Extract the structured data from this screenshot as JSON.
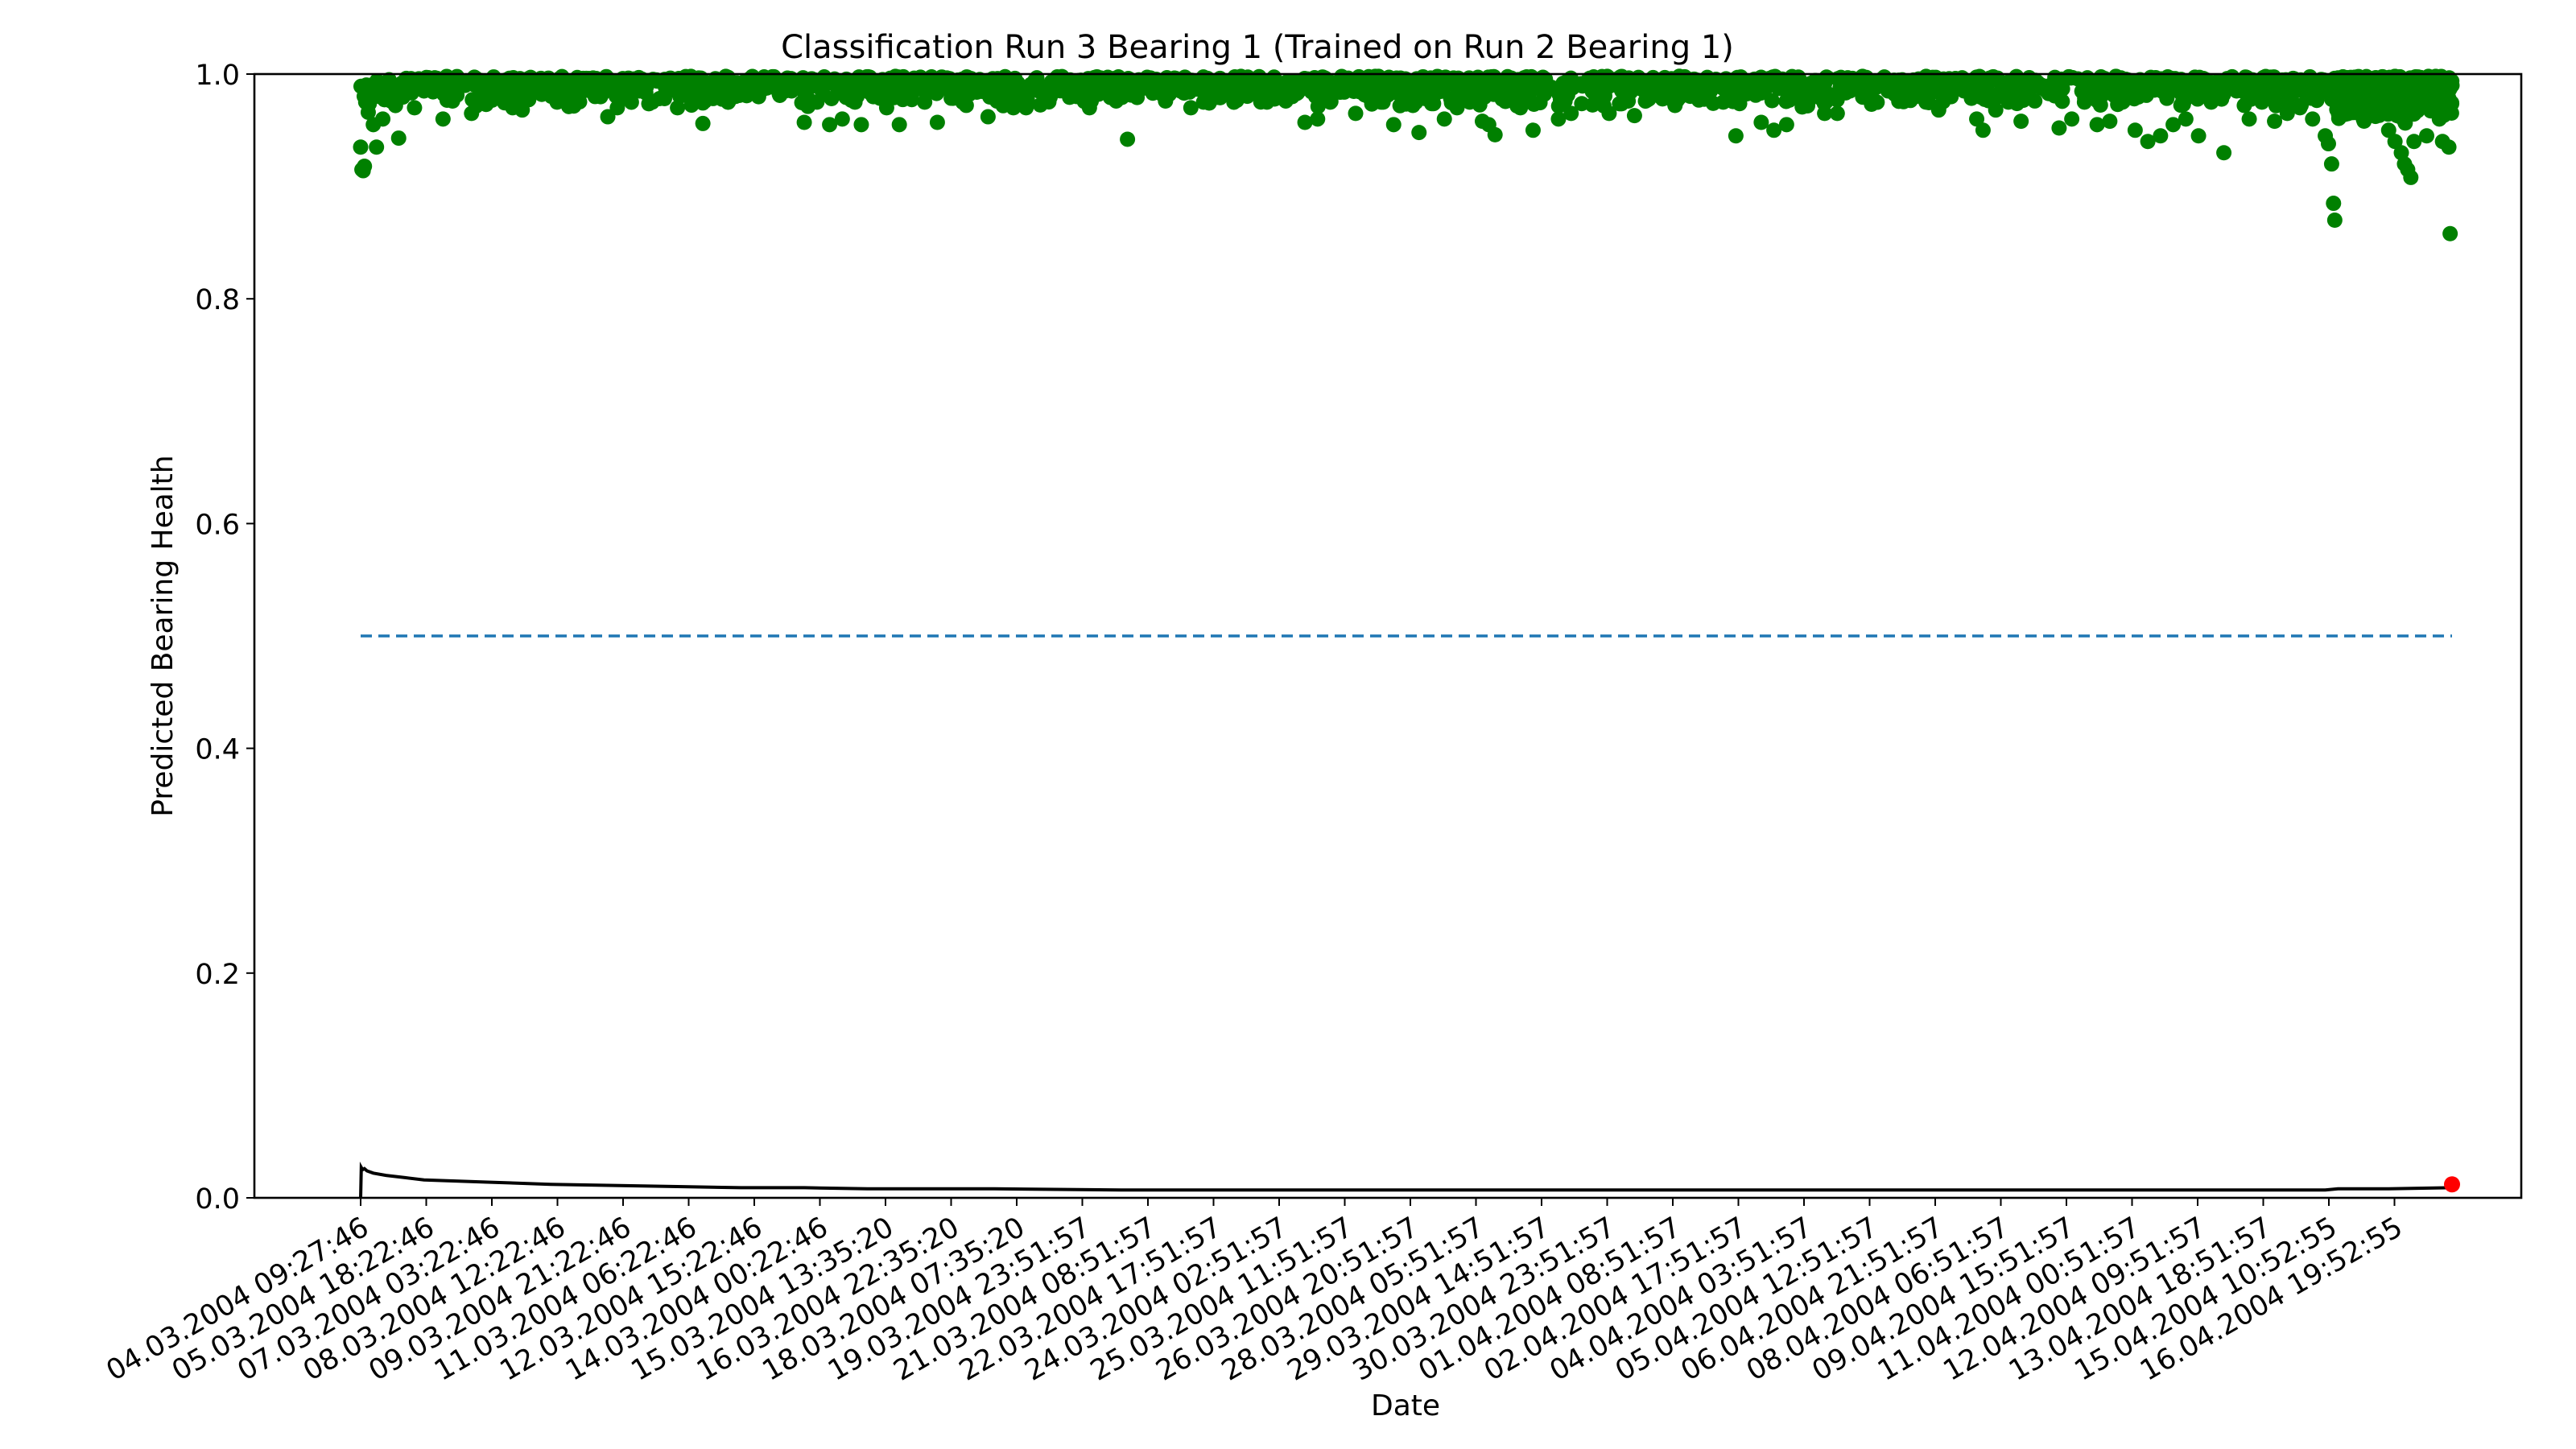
{
  "chart_data": {
    "type": "scatter",
    "title": "Classification Run 3 Bearing 1 (Trained on Run 2 Bearing 1)",
    "xlabel": "Date",
    "ylabel": "Predicted Bearing Health",
    "ylim": [
      0.0,
      1.0
    ],
    "yticks": [
      "0.0",
      "0.2",
      "0.4",
      "0.6",
      "0.8",
      "1.0"
    ],
    "x_tick_labels": [
      "04.03.2004 09:27:46",
      "05.03.2004 18:22:46",
      "07.03.2004 03:22:46",
      "08.03.2004 12:22:46",
      "09.03.2004 21:22:46",
      "11.03.2004 06:22:46",
      "12.03.2004 15:22:46",
      "14.03.2004 00:22:46",
      "15.03.2004 13:35:20",
      "16.03.2004 22:35:20",
      "18.03.2004 07:35:20",
      "19.03.2004 23:51:57",
      "21.03.2004 08:51:57",
      "22.03.2004 17:51:57",
      "24.03.2004 02:51:57",
      "25.03.2004 11:51:57",
      "26.03.2004 20:51:57",
      "28.03.2004 05:51:57",
      "29.03.2004 14:51:57",
      "30.03.2004 23:51:57",
      "01.04.2004 08:51:57",
      "02.04.2004 17:51:57",
      "04.04.2004 03:51:57",
      "05.04.2004 12:51:57",
      "06.04.2004 21:51:57",
      "08.04.2004 06:51:57",
      "09.04.2004 15:51:57",
      "11.04.2004 00:51:57",
      "12.04.2004 09:51:57",
      "13.04.2004 18:51:57",
      "15.04.2004 10:52:55",
      "16.04.2004 19:52:55"
    ],
    "threshold": {
      "value": 0.5,
      "style": "dashed",
      "color": "#1f77b4"
    },
    "series": [
      {
        "kind": "scatter",
        "color": "#008000",
        "points": [
          [
            0.0,
            0.935
          ],
          [
            0.02,
            0.915
          ],
          [
            0.04,
            0.914
          ],
          [
            0.06,
            0.918
          ],
          [
            0.08,
            0.975
          ],
          [
            0.1,
            0.985
          ],
          [
            0.12,
            0.966
          ],
          [
            0.15,
            0.99
          ],
          [
            0.2,
            0.955
          ],
          [
            0.25,
            0.935
          ],
          [
            0.3,
            0.98
          ],
          [
            0.35,
            0.96
          ],
          [
            0.45,
            0.99
          ],
          [
            0.55,
            0.972
          ],
          [
            0.6,
            0.943
          ],
          [
            0.7,
            0.982
          ],
          [
            0.85,
            0.97
          ],
          [
            1.0,
            0.985
          ],
          [
            1.15,
            0.992
          ],
          [
            1.3,
            0.96
          ],
          [
            1.45,
            0.976
          ],
          [
            1.6,
            0.99
          ],
          [
            1.75,
            0.965
          ],
          [
            1.9,
            0.982
          ],
          [
            2.05,
            0.978
          ],
          [
            2.2,
            0.993
          ],
          [
            2.4,
            0.97
          ],
          [
            2.55,
            0.968
          ],
          [
            2.7,
            0.99
          ],
          [
            2.9,
            0.985
          ],
          [
            3.1,
            0.975
          ],
          [
            3.3,
            0.992
          ],
          [
            3.5,
            0.988
          ],
          [
            3.7,
            0.98
          ],
          [
            3.9,
            0.962
          ],
          [
            4.05,
            0.97
          ],
          [
            4.2,
            0.99
          ],
          [
            4.4,
            0.985
          ],
          [
            4.6,
            0.975
          ],
          [
            4.8,
            0.992
          ],
          [
            5.0,
            0.97
          ],
          [
            5.2,
            0.993
          ],
          [
            5.4,
            0.956
          ],
          [
            5.6,
            0.988
          ],
          [
            5.8,
            0.975
          ],
          [
            6.0,
            0.99
          ],
          [
            6.2,
            0.985
          ],
          [
            6.4,
            0.993
          ],
          [
            6.6,
            0.99
          ],
          [
            6.8,
            0.985
          ],
          [
            7.0,
            0.957
          ],
          [
            7.2,
            0.975
          ],
          [
            7.4,
            0.955
          ],
          [
            7.6,
            0.96
          ],
          [
            7.8,
            0.975
          ],
          [
            7.9,
            0.955
          ],
          [
            8.1,
            0.985
          ],
          [
            8.3,
            0.97
          ],
          [
            8.5,
            0.955
          ],
          [
            8.7,
            0.99
          ],
          [
            8.9,
            0.975
          ],
          [
            9.1,
            0.957
          ],
          [
            9.3,
            0.985
          ],
          [
            9.5,
            0.975
          ],
          [
            9.7,
            0.99
          ],
          [
            9.9,
            0.962
          ],
          [
            10.1,
            0.99
          ],
          [
            10.3,
            0.97
          ],
          [
            10.5,
            0.97
          ],
          [
            10.7,
            0.985
          ],
          [
            10.9,
            0.993
          ],
          [
            11.1,
            0.99
          ],
          [
            11.3,
            0.98
          ],
          [
            11.5,
            0.97
          ],
          [
            11.7,
            0.992
          ],
          [
            11.9,
            0.985
          ],
          [
            12.1,
            0.942
          ],
          [
            12.3,
            0.99
          ],
          [
            12.5,
            0.983
          ],
          [
            12.7,
            0.976
          ],
          [
            12.9,
            0.99
          ],
          [
            13.1,
            0.97
          ],
          [
            13.3,
            0.975
          ],
          [
            13.5,
            0.99
          ],
          [
            13.7,
            0.985
          ],
          [
            13.9,
            0.993
          ],
          [
            14.1,
            0.985
          ],
          [
            14.3,
            0.975
          ],
          [
            14.5,
            0.99
          ],
          [
            14.7,
            0.98
          ],
          [
            14.9,
            0.957
          ],
          [
            15.1,
            0.96
          ],
          [
            15.3,
            0.975
          ],
          [
            15.5,
            0.99
          ],
          [
            15.7,
            0.965
          ],
          [
            15.9,
            0.98
          ],
          [
            16.1,
            0.975
          ],
          [
            16.3,
            0.955
          ],
          [
            16.5,
            0.985
          ],
          [
            16.7,
            0.948
          ],
          [
            16.9,
            0.99
          ],
          [
            17.1,
            0.96
          ],
          [
            17.3,
            0.97
          ],
          [
            17.5,
            0.975
          ],
          [
            17.7,
            0.958
          ],
          [
            17.8,
            0.955
          ],
          [
            17.9,
            0.946
          ],
          [
            18.1,
            0.985
          ],
          [
            18.3,
            0.97
          ],
          [
            18.5,
            0.95
          ],
          [
            18.7,
            0.985
          ],
          [
            18.9,
            0.96
          ],
          [
            19.1,
            0.965
          ],
          [
            19.3,
            0.99
          ],
          [
            19.5,
            0.99
          ],
          [
            19.7,
            0.965
          ],
          [
            19.9,
            0.985
          ],
          [
            20.1,
            0.963
          ],
          [
            20.3,
            0.985
          ],
          [
            20.5,
            0.993
          ],
          [
            20.7,
            0.99
          ],
          [
            20.9,
            0.99
          ],
          [
            21.1,
            0.99
          ],
          [
            21.3,
            0.985
          ],
          [
            21.5,
            0.975
          ],
          [
            21.7,
            0.945
          ],
          [
            21.9,
            0.985
          ],
          [
            22.1,
            0.957
          ],
          [
            22.3,
            0.95
          ],
          [
            22.5,
            0.955
          ],
          [
            22.7,
            0.98
          ],
          [
            22.9,
            0.99
          ],
          [
            23.1,
            0.965
          ],
          [
            23.3,
            0.965
          ],
          [
            23.5,
            0.985
          ],
          [
            23.7,
            0.99
          ],
          [
            23.9,
            0.993
          ],
          [
            24.1,
            0.985
          ],
          [
            24.3,
            0.99
          ],
          [
            24.5,
            0.985
          ],
          [
            24.7,
            0.975
          ],
          [
            24.9,
            0.968
          ],
          [
            25.1,
            0.99
          ],
          [
            25.3,
            0.985
          ],
          [
            25.5,
            0.96
          ],
          [
            25.6,
            0.95
          ],
          [
            25.8,
            0.968
          ],
          [
            26.0,
            0.975
          ],
          [
            26.2,
            0.958
          ],
          [
            26.4,
            0.99
          ],
          [
            26.6,
            0.985
          ],
          [
            26.8,
            0.952
          ],
          [
            27.0,
            0.96
          ],
          [
            27.2,
            0.975
          ],
          [
            27.4,
            0.955
          ],
          [
            27.6,
            0.958
          ],
          [
            27.8,
            0.975
          ],
          [
            28.0,
            0.95
          ],
          [
            28.2,
            0.94
          ],
          [
            28.4,
            0.945
          ],
          [
            28.6,
            0.955
          ],
          [
            28.8,
            0.96
          ],
          [
            29.0,
            0.945
          ],
          [
            29.2,
            0.975
          ],
          [
            29.4,
            0.93
          ],
          [
            29.6,
            0.985
          ],
          [
            29.8,
            0.96
          ],
          [
            30.0,
            0.975
          ],
          [
            30.2,
            0.958
          ],
          [
            30.4,
            0.965
          ],
          [
            30.6,
            0.97
          ],
          [
            30.8,
            0.96
          ],
          [
            31.0,
            0.945
          ],
          [
            31.05,
            0.938
          ],
          [
            31.1,
            0.92
          ],
          [
            31.13,
            0.885
          ],
          [
            31.15,
            0.87
          ],
          [
            31.2,
            0.985
          ],
          [
            31.3,
            0.97
          ],
          [
            31.4,
            0.99
          ],
          [
            31.5,
            0.978
          ],
          [
            31.6,
            0.96
          ],
          [
            31.7,
            0.975
          ],
          [
            31.8,
            0.99
          ],
          [
            31.9,
            0.965
          ],
          [
            32.0,
            0.95
          ],
          [
            32.1,
            0.94
          ],
          [
            32.2,
            0.93
          ],
          [
            32.25,
            0.92
          ],
          [
            32.3,
            0.915
          ],
          [
            32.35,
            0.908
          ],
          [
            32.4,
            0.94
          ],
          [
            32.5,
            0.97
          ],
          [
            32.6,
            0.945
          ],
          [
            32.7,
            0.99
          ],
          [
            32.8,
            0.96
          ],
          [
            32.85,
            0.94
          ],
          [
            32.9,
            0.975
          ],
          [
            32.95,
            0.935
          ],
          [
            32.97,
            0.858
          ],
          [
            33.0,
            0.99
          ]
        ]
      },
      {
        "kind": "line",
        "color": "#000000",
        "points": [
          [
            0.0,
            0.0
          ],
          [
            0.01,
            0.027
          ],
          [
            0.03,
            0.025
          ],
          [
            0.06,
            0.026
          ],
          [
            0.1,
            0.024
          ],
          [
            0.2,
            0.022
          ],
          [
            0.4,
            0.02
          ],
          [
            0.7,
            0.018
          ],
          [
            1.0,
            0.016
          ],
          [
            1.5,
            0.015
          ],
          [
            2.0,
            0.014
          ],
          [
            3.0,
            0.012
          ],
          [
            4.0,
            0.011
          ],
          [
            5.0,
            0.01
          ],
          [
            6.0,
            0.009
          ],
          [
            7.0,
            0.009
          ],
          [
            8.0,
            0.008
          ],
          [
            10.0,
            0.008
          ],
          [
            12.0,
            0.007
          ],
          [
            15.0,
            0.007
          ],
          [
            20.0,
            0.007
          ],
          [
            25.0,
            0.007
          ],
          [
            30.0,
            0.007
          ],
          [
            31.0,
            0.007
          ],
          [
            31.2,
            0.008
          ],
          [
            32.0,
            0.008
          ],
          [
            33.0,
            0.009
          ]
        ]
      },
      {
        "kind": "scatter",
        "color": "#ff0000",
        "points": [
          [
            33.0,
            0.012
          ]
        ]
      }
    ],
    "band_seeds": [
      {
        "from": 0.0,
        "to": 31.1,
        "n": 1500,
        "min": 0.97,
        "max": 0.998
      },
      {
        "from": 31.1,
        "to": 33.0,
        "n": 400,
        "min": 0.955,
        "max": 0.998
      }
    ]
  }
}
